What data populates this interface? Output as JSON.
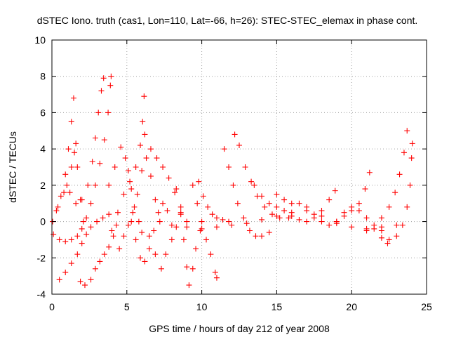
{
  "chart_data": {
    "type": "scatter",
    "title": "dSTEC Iono. truth (cas1, Lon=110, Lat=-66, h=26): STEC-STEC_elemax in phase cont.",
    "xlabel": "GPS time / hours of day 212 of year 2008",
    "ylabel": "dSTEC  / TECUs",
    "xlim": [
      0,
      25
    ],
    "ylim": [
      -4,
      10
    ],
    "xticks": [
      0,
      5,
      10,
      15,
      20,
      25
    ],
    "yticks": [
      -4,
      -2,
      0,
      2,
      4,
      6,
      8,
      10
    ],
    "xtick_labels": [
      "0",
      "5",
      "10",
      "15",
      "20",
      "25"
    ],
    "ytick_labels": [
      "-4",
      "-2",
      "0",
      "2",
      "4",
      "6",
      "8",
      "10"
    ],
    "grid": true,
    "marker": "+",
    "series_color": "#ff0000",
    "series": [
      {
        "values": [
          [
            0.05,
            0.0
          ],
          [
            0.3,
            0.6
          ],
          [
            0.6,
            1.4
          ],
          [
            0.9,
            2.6
          ],
          [
            1.1,
            4.0
          ],
          [
            1.3,
            5.5
          ],
          [
            1.45,
            6.8
          ]
        ]
      },
      {
        "values": [
          [
            0.1,
            -0.7
          ],
          [
            0.5,
            -1.0
          ],
          [
            0.9,
            -1.1
          ],
          [
            1.3,
            -1.0
          ],
          [
            1.7,
            -0.8
          ],
          [
            2.0,
            -0.4
          ],
          [
            2.3,
            0.2
          ],
          [
            2.6,
            1.0
          ],
          [
            2.9,
            2.0
          ],
          [
            3.2,
            3.2
          ],
          [
            3.5,
            4.5
          ],
          [
            3.75,
            6.0
          ],
          [
            3.9,
            7.5
          ],
          [
            3.95,
            8.0
          ]
        ]
      },
      {
        "values": [
          [
            0.4,
            0.8
          ],
          [
            0.8,
            1.6
          ],
          [
            1.2,
            1.6
          ],
          [
            1.6,
            1.0
          ],
          [
            2.0,
            1.2
          ],
          [
            2.4,
            2.0
          ],
          [
            2.7,
            3.3
          ],
          [
            2.9,
            4.6
          ],
          [
            3.1,
            6.0
          ],
          [
            3.3,
            7.2
          ],
          [
            3.45,
            7.9
          ]
        ]
      },
      {
        "values": [
          [
            0.5,
            -3.2
          ],
          [
            0.9,
            -2.8
          ],
          [
            1.3,
            -2.3
          ],
          [
            1.7,
            -1.8
          ],
          [
            2.0,
            -1.2
          ],
          [
            2.3,
            -0.7
          ],
          [
            2.6,
            -0.3
          ],
          [
            3.0,
            0.0
          ],
          [
            3.4,
            0.2
          ],
          [
            3.8,
            0.4
          ]
        ]
      },
      {
        "values": [
          [
            1.0,
            2.0
          ],
          [
            1.3,
            3.0
          ],
          [
            1.5,
            3.8
          ],
          [
            1.6,
            4.3
          ],
          [
            1.7,
            3.0
          ],
          [
            1.9,
            1.2
          ],
          [
            2.1,
            0.0
          ]
        ]
      },
      {
        "values": [
          [
            1.9,
            -3.3
          ],
          [
            2.2,
            -3.5
          ],
          [
            2.6,
            -3.2
          ],
          [
            2.9,
            -2.6
          ],
          [
            3.2,
            -2.2
          ],
          [
            3.5,
            -1.8
          ],
          [
            3.8,
            -1.4
          ],
          [
            4.1,
            -0.8
          ],
          [
            4.3,
            -0.2
          ]
        ]
      },
      {
        "values": [
          [
            3.8,
            2.0
          ],
          [
            4.2,
            3.0
          ],
          [
            4.6,
            4.1
          ],
          [
            4.9,
            3.5
          ],
          [
            5.1,
            2.8
          ],
          [
            5.3,
            1.8
          ],
          [
            5.5,
            0.8
          ],
          [
            5.8,
            0.0
          ],
          [
            6.0,
            -0.6
          ]
        ]
      },
      {
        "values": [
          [
            4.0,
            -0.5
          ],
          [
            4.4,
            0.5
          ],
          [
            4.8,
            1.5
          ],
          [
            5.2,
            2.2
          ],
          [
            5.6,
            3.0
          ],
          [
            5.9,
            4.2
          ],
          [
            6.05,
            5.5
          ],
          [
            6.15,
            6.9
          ]
        ]
      },
      {
        "values": [
          [
            4.5,
            -1.5
          ],
          [
            4.8,
            -0.8
          ],
          [
            5.1,
            -0.2
          ],
          [
            5.4,
            0.5
          ],
          [
            5.7,
            1.5
          ],
          [
            6.0,
            2.8
          ],
          [
            6.3,
            3.5
          ],
          [
            6.6,
            2.5
          ],
          [
            6.9,
            1.2
          ],
          [
            7.2,
            0.0
          ]
        ]
      },
      {
        "values": [
          [
            5.3,
            0.0
          ],
          [
            5.6,
            -1.0
          ],
          [
            5.9,
            -2.0
          ],
          [
            6.2,
            -2.2
          ],
          [
            6.5,
            -1.5
          ],
          [
            6.8,
            -0.5
          ],
          [
            7.1,
            0.5
          ],
          [
            7.4,
            1.0
          ],
          [
            7.7,
            0.6
          ],
          [
            8.0,
            -0.2
          ]
        ]
      },
      {
        "values": [
          [
            6.2,
            4.8
          ],
          [
            6.6,
            4.0
          ],
          [
            7.0,
            3.5
          ],
          [
            7.4,
            3.0
          ],
          [
            7.8,
            2.4
          ],
          [
            8.2,
            1.6
          ],
          [
            8.6,
            0.8
          ],
          [
            9.0,
            0.0
          ]
        ]
      },
      {
        "values": [
          [
            6.5,
            -0.8
          ],
          [
            6.9,
            -1.8
          ],
          [
            7.3,
            -2.6
          ],
          [
            7.6,
            -1.8
          ],
          [
            8.0,
            -1.0
          ],
          [
            8.3,
            -0.3
          ],
          [
            8.6,
            0.4
          ]
        ]
      },
      {
        "values": [
          [
            8.3,
            1.8
          ],
          [
            8.6,
            0.5
          ],
          [
            8.8,
            -1.0
          ],
          [
            9.0,
            -2.5
          ],
          [
            9.15,
            -3.5
          ],
          [
            9.4,
            -2.6
          ],
          [
            9.6,
            -1.5
          ],
          [
            9.9,
            -0.5
          ]
        ]
      },
      {
        "values": [
          [
            9.4,
            2.0
          ],
          [
            9.7,
            1.0
          ],
          [
            10.0,
            0.0
          ],
          [
            10.3,
            -1.0
          ],
          [
            10.6,
            -1.8
          ],
          [
            10.9,
            -2.8
          ],
          [
            11.0,
            -3.1
          ]
        ]
      },
      {
        "values": [
          [
            9.8,
            2.2
          ],
          [
            10.1,
            1.4
          ],
          [
            10.4,
            0.8
          ],
          [
            10.7,
            0.4
          ],
          [
            11.0,
            0.2
          ],
          [
            11.4,
            0.1
          ],
          [
            11.8,
            0.0
          ]
        ]
      },
      {
        "values": [
          [
            9.0,
            -0.3
          ],
          [
            10.0,
            -0.4
          ],
          [
            11.0,
            -0.3
          ],
          [
            12.0,
            -0.2
          ],
          [
            13.0,
            -0.1
          ],
          [
            14.0,
            0.1
          ],
          [
            15.0,
            0.3
          ],
          [
            16.0,
            0.5
          ],
          [
            17.0,
            0.6
          ],
          [
            18.0,
            0.3
          ],
          [
            19.0,
            -0.1
          ],
          [
            20.0,
            -0.3
          ],
          [
            21.0,
            -0.4
          ],
          [
            22.0,
            -0.3
          ],
          [
            23.0,
            -0.2
          ]
        ]
      },
      {
        "values": [
          [
            11.5,
            4.0
          ],
          [
            11.8,
            3.0
          ],
          [
            12.1,
            2.0
          ],
          [
            12.4,
            1.0
          ],
          [
            12.8,
            0.2
          ],
          [
            13.2,
            -0.5
          ],
          [
            13.6,
            -0.8
          ],
          [
            14.0,
            -0.8
          ],
          [
            14.5,
            -0.6
          ]
        ]
      },
      {
        "values": [
          [
            12.2,
            4.8
          ],
          [
            12.5,
            4.2
          ],
          [
            12.9,
            3.0
          ],
          [
            13.3,
            2.2
          ],
          [
            13.7,
            1.4
          ],
          [
            14.2,
            0.8
          ],
          [
            14.7,
            0.4
          ],
          [
            15.2,
            0.2
          ],
          [
            15.8,
            0.2
          ]
        ]
      },
      {
        "values": [
          [
            13.5,
            2.0
          ],
          [
            14.0,
            1.4
          ],
          [
            14.5,
            1.0
          ],
          [
            15.0,
            0.8
          ],
          [
            15.5,
            0.6
          ],
          [
            16.0,
            0.3
          ],
          [
            16.5,
            0.1
          ],
          [
            17.0,
            0.0
          ],
          [
            17.5,
            0.2
          ],
          [
            18.0,
            0.6
          ],
          [
            18.5,
            1.2
          ],
          [
            18.9,
            1.7
          ]
        ]
      },
      {
        "values": [
          [
            15.0,
            1.5
          ],
          [
            15.5,
            1.2
          ],
          [
            16.0,
            1.0
          ],
          [
            16.5,
            1.0
          ],
          [
            17.0,
            0.8
          ],
          [
            17.5,
            0.4
          ],
          [
            18.0,
            0.0
          ],
          [
            18.5,
            -0.2
          ],
          [
            19.0,
            0.0
          ],
          [
            19.5,
            0.5
          ],
          [
            20.0,
            0.8
          ],
          [
            20.5,
            0.6
          ],
          [
            21.0,
            0.2
          ],
          [
            21.5,
            -0.4
          ],
          [
            22.0,
            -0.9
          ],
          [
            22.4,
            -1.2
          ]
        ]
      },
      {
        "values": [
          [
            19.0,
            0.0
          ],
          [
            19.5,
            0.3
          ],
          [
            20.0,
            0.6
          ],
          [
            20.5,
            1.0
          ],
          [
            20.9,
            1.8
          ],
          [
            21.2,
            2.7
          ]
        ]
      },
      {
        "values": [
          [
            21.0,
            -0.5
          ],
          [
            21.5,
            -0.2
          ],
          [
            22.0,
            0.2
          ],
          [
            22.5,
            0.8
          ],
          [
            22.9,
            1.6
          ],
          [
            23.2,
            2.6
          ],
          [
            23.5,
            3.8
          ],
          [
            23.7,
            5.0
          ]
        ]
      },
      {
        "values": [
          [
            22.0,
            -0.5
          ],
          [
            22.5,
            -1.0
          ],
          [
            23.0,
            -0.8
          ],
          [
            23.4,
            -0.2
          ],
          [
            23.7,
            0.8
          ],
          [
            23.9,
            2.0
          ],
          [
            24.0,
            3.5
          ],
          [
            24.05,
            4.3
          ]
        ]
      }
    ]
  }
}
